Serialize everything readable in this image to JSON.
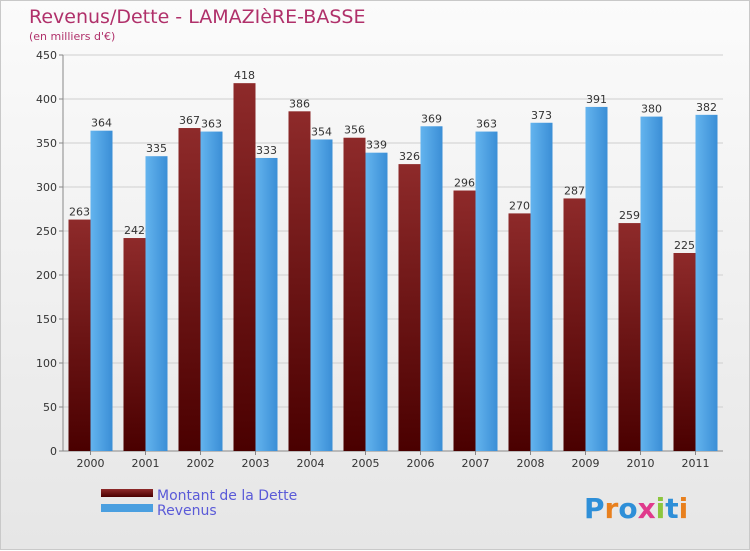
{
  "chart_data": {
    "type": "bar",
    "title": "Revenus/Dette - LAMAZIèRE-BASSE",
    "subtitle": "(en milliers d'€)",
    "categories": [
      "2000",
      "2001",
      "2002",
      "2003",
      "2004",
      "2005",
      "2006",
      "2007",
      "2008",
      "2009",
      "2010",
      "2011"
    ],
    "series": [
      {
        "name": "Montant de la Dette",
        "color": "#8b1a1a",
        "values": [
          263,
          242,
          367,
          418,
          386,
          356,
          326,
          296,
          270,
          287,
          259,
          225
        ]
      },
      {
        "name": "Revenus",
        "color": "#4a9fe0",
        "values": [
          364,
          335,
          363,
          333,
          354,
          339,
          369,
          363,
          373,
          391,
          380,
          382
        ]
      }
    ],
    "ylim": [
      0,
      450
    ],
    "yticks": [
      0,
      50,
      100,
      150,
      200,
      250,
      300,
      350,
      400,
      450
    ],
    "grid": true,
    "legend_position": "bottom-left"
  },
  "logo": {
    "letters": [
      "P",
      "r",
      "o",
      "x",
      "i",
      "t",
      "i"
    ],
    "colors": [
      "#2e8fd8",
      "#e8801e",
      "#2e8fd8",
      "#e03a8c",
      "#8cc63e",
      "#2e8fd8",
      "#e8801e"
    ]
  }
}
